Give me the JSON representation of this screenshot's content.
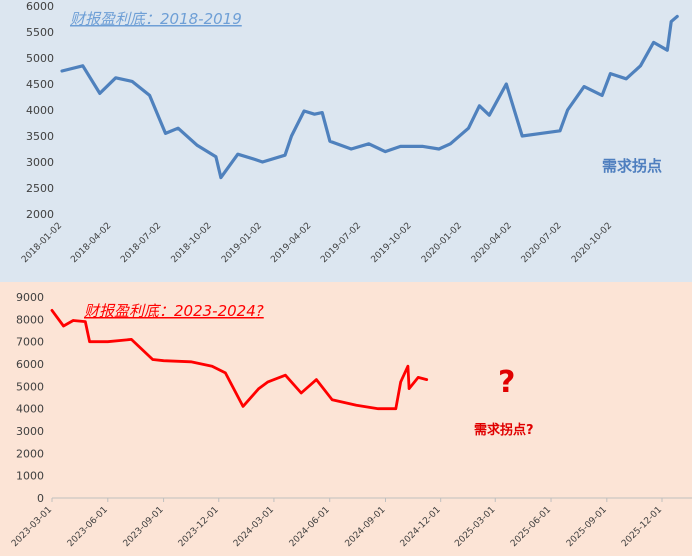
{
  "chart_data": [
    {
      "type": "line",
      "title": "财报盈利底：2018-2019",
      "annotation": "需求拐点",
      "series_color": "#4f81bd",
      "background": "#dce6f0",
      "ylim": [
        2000,
        6000
      ],
      "yticks": [
        "2000",
        "2500",
        "3000",
        "3500",
        "4000",
        "4500",
        "5000",
        "5500",
        "6000"
      ],
      "xticks": [
        "2018-01-02",
        "2018-04-02",
        "2018-07-02",
        "2018-10-02",
        "2019-01-02",
        "2019-04-02",
        "2019-07-02",
        "2019-10-02",
        "2020-01-02",
        "2020-04-02",
        "2020-07-02",
        "2020-10-02"
      ],
      "x": [
        "2018-01-02",
        "2018-02-09",
        "2018-03-12",
        "2018-04-10",
        "2018-05-10",
        "2018-06-11",
        "2018-07-10",
        "2018-08-02",
        "2018-09-06",
        "2018-10-10",
        "2018-10-19",
        "2018-11-19",
        "2018-12-20",
        "2019-01-03",
        "2019-02-13",
        "2019-02-25",
        "2019-03-20",
        "2019-04-08",
        "2019-04-22",
        "2019-05-06",
        "2019-06-14",
        "2019-07-16",
        "2019-08-15",
        "2019-09-12",
        "2019-10-23",
        "2019-11-21",
        "2019-12-12",
        "2020-01-14",
        "2020-02-03",
        "2020-02-21",
        "2020-03-23",
        "2020-04-21",
        "2020-05-25",
        "2020-06-29",
        "2020-07-13",
        "2020-08-12",
        "2020-09-14",
        "2020-09-29",
        "2020-10-28",
        "2020-11-23",
        "2020-12-17",
        "2021-01-11",
        "2021-01-18",
        "2021-01-29"
      ],
      "values": [
        4750,
        4850,
        4320,
        4620,
        4550,
        4280,
        3550,
        3650,
        3320,
        3100,
        2700,
        3150,
        3050,
        3000,
        3130,
        3500,
        3980,
        3920,
        3950,
        3400,
        3250,
        3350,
        3200,
        3300,
        3300,
        3250,
        3350,
        3650,
        4080,
        3900,
        4500,
        3500,
        3550,
        3600,
        4000,
        4450,
        4280,
        4700,
        4600,
        4850,
        5300,
        5150,
        5700,
        5800
      ],
      "color": "#4f81bd"
    },
    {
      "type": "line",
      "title": "财报盈利底：2023-2024",
      "title_suffix": "?",
      "annotation": "需求拐点?",
      "big_mark": "?",
      "series_color": "#ff0000",
      "background": "#fce4d6",
      "ylim": [
        0,
        9000
      ],
      "yticks": [
        "0",
        "1000",
        "2000",
        "3000",
        "4000",
        "5000",
        "6000",
        "7000",
        "8000",
        "9000"
      ],
      "xticks": [
        "2023-03-01",
        "2023-06-01",
        "2023-09-01",
        "2023-12-01",
        "2024-03-01",
        "2024-06-01",
        "2024-09-01",
        "2024-12-01",
        "2025-03-01",
        "2025-06-01",
        "2025-09-01",
        "2025-12-01"
      ],
      "x": [
        "2023-03-01",
        "2023-03-20",
        "2023-04-05",
        "2023-04-25",
        "2023-05-02",
        "2023-06-01",
        "2023-07-10",
        "2023-08-14",
        "2023-09-01",
        "2023-10-16",
        "2023-11-20",
        "2023-12-12",
        "2024-01-10",
        "2024-02-05",
        "2024-02-20",
        "2024-03-20",
        "2024-04-15",
        "2024-05-10",
        "2024-06-05",
        "2024-07-15",
        "2024-08-20",
        "2024-09-18",
        "2024-09-26",
        "2024-10-08",
        "2024-10-10",
        "2024-10-25",
        "2024-11-08"
      ],
      "values": [
        8400,
        7700,
        7950,
        7900,
        7000,
        7000,
        7100,
        6200,
        6150,
        6100,
        5900,
        5600,
        4100,
        4900,
        5200,
        5500,
        4700,
        5300,
        4400,
        4150,
        4000,
        4000,
        5200,
        5900,
        4900,
        5400,
        5300
      ],
      "color": "#ff0000"
    }
  ]
}
